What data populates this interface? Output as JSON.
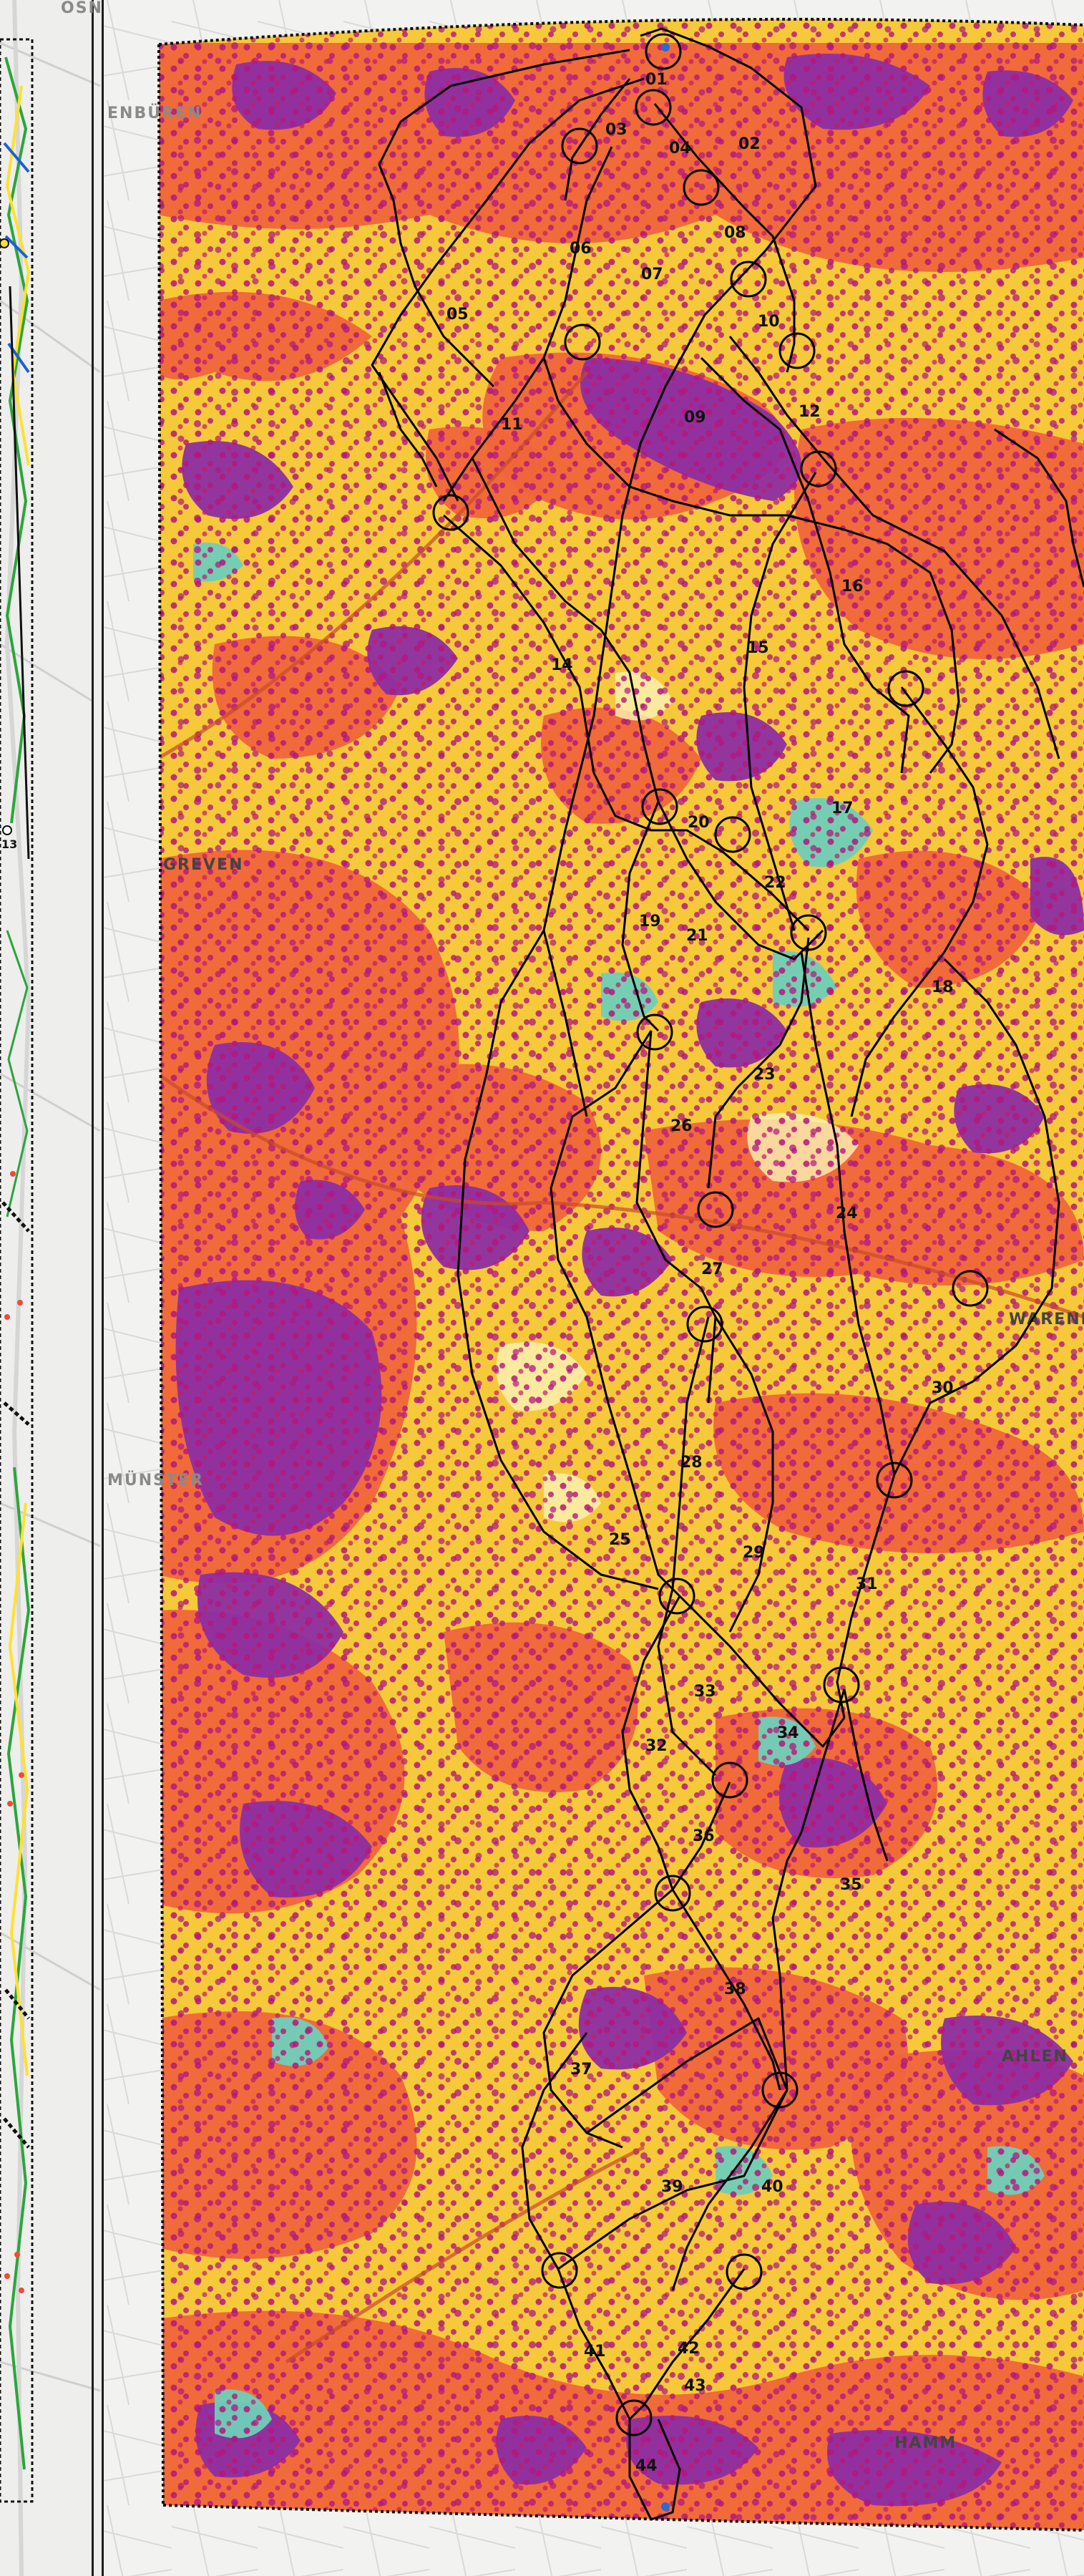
{
  "map": {
    "colors": {
      "background": "#f2f2f0",
      "base": "#f5c93a",
      "orange": "#f0653a",
      "purple": "#8c2ea3",
      "teal": "#6fcfb8",
      "cream": "#fbf3b6",
      "dots": "#b4177a",
      "route": "#000000",
      "boundary": "#111111"
    },
    "place_labels": [
      {
        "id": "osn",
        "text": "OSN"
      },
      {
        "id": "munster",
        "text": "MÜNSTER"
      },
      {
        "id": "greven",
        "text": "GREVEN"
      },
      {
        "id": "ahlen",
        "text": "AHLEN"
      },
      {
        "id": "hamm",
        "text": "HAMM"
      },
      {
        "id": "warendorf",
        "text": "WARENDORF"
      },
      {
        "id": "ibbenburen",
        "text": "ENBÜREN"
      }
    ],
    "segments": [
      "01",
      "02",
      "03",
      "04",
      "05",
      "06",
      "07",
      "08",
      "09",
      "10",
      "11",
      "12",
      "13",
      "14",
      "15",
      "16",
      "17",
      "18",
      "19",
      "20",
      "21",
      "22",
      "23",
      "24",
      "25",
      "26",
      "27",
      "28",
      "29",
      "30",
      "31",
      "32",
      "33",
      "34",
      "35",
      "36",
      "37",
      "38",
      "39",
      "40",
      "41",
      "42",
      "43",
      "44"
    ]
  }
}
